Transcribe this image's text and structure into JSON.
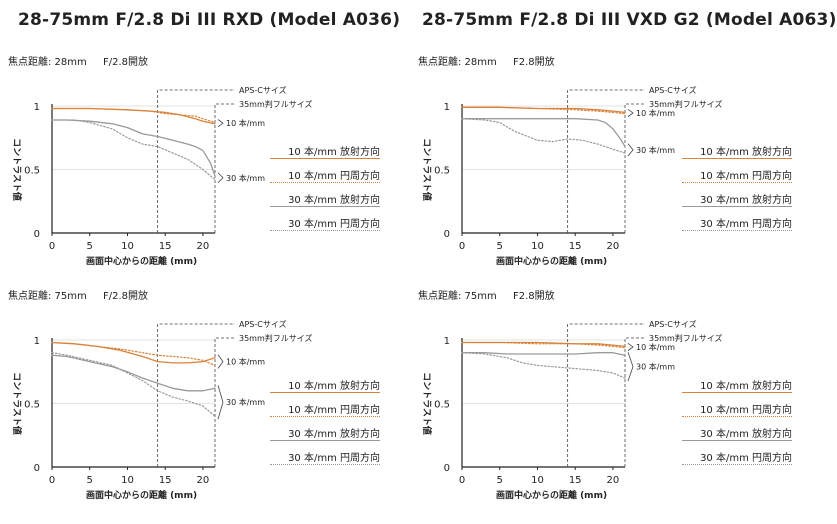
{
  "header": {
    "titles": [
      "28-75mm F/2.8 Di III RXD (Model A036)",
      "28-75mm F/2.8 Di III VXD G2 (Model A063)"
    ]
  },
  "legend": {
    "items": [
      {
        "label": "10 本/mm 放射方向",
        "color": "#d9823a",
        "style": "solid"
      },
      {
        "label": "10 本/mm 円周方向",
        "color": "#d9823a",
        "style": "dotted"
      },
      {
        "label": "30 本/mm 放射方向",
        "color": "#999999",
        "style": "solid"
      },
      {
        "label": "30 本/mm 円周方向",
        "color": "#999999",
        "style": "dotted"
      }
    ]
  },
  "colors": {
    "orange": "#d9823a",
    "gray": "#9a9a9a",
    "axis": "#222222"
  },
  "chart_data": [
    {
      "type": "line",
      "lens": "28-75mm F/2.8 Di III RXD (Model A036)",
      "focal_label": "焦点距離: 28mm",
      "aperture_label": "F/2.8開放",
      "xlabel": "画面中心からの距離 (mm)",
      "ylabel": "コントラスト値",
      "xlim": [
        0,
        21.6
      ],
      "ylim": [
        0,
        1
      ],
      "xticks": [
        0,
        5,
        10,
        15,
        20
      ],
      "yticks": [
        0,
        0.5,
        1
      ],
      "ytick_labels": [
        "0",
        "0.5",
        "1"
      ],
      "aps_c_x": 14,
      "fullframe_x": 21.6,
      "aps_c_label": "APS-Cサイズ",
      "fullframe_label": "35mm判フルサイズ",
      "annotations": [
        "10 本/mm",
        "30 本/mm"
      ],
      "series": [
        {
          "name": "10 本/mm 放射方向",
          "x": [
            0,
            5,
            10,
            13,
            15,
            17,
            19,
            20,
            21.6
          ],
          "y": [
            0.98,
            0.98,
            0.97,
            0.96,
            0.95,
            0.93,
            0.9,
            0.88,
            0.86
          ]
        },
        {
          "name": "10 本/mm 円周方向",
          "x": [
            0,
            5,
            10,
            13,
            15,
            17,
            19,
            20,
            21.6
          ],
          "y": [
            0.98,
            0.98,
            0.97,
            0.96,
            0.94,
            0.93,
            0.92,
            0.9,
            0.87
          ]
        },
        {
          "name": "30 本/mm 放射方向",
          "x": [
            0,
            2,
            5,
            8,
            10,
            12,
            14,
            16,
            18,
            19,
            20,
            21,
            21.6
          ],
          "y": [
            0.89,
            0.89,
            0.88,
            0.86,
            0.83,
            0.78,
            0.76,
            0.73,
            0.7,
            0.68,
            0.65,
            0.55,
            0.45
          ]
        },
        {
          "name": "30 本/mm 円周方向",
          "x": [
            0,
            3,
            5,
            8,
            10,
            12,
            14,
            16,
            18,
            20,
            21.6
          ],
          "y": [
            0.89,
            0.89,
            0.87,
            0.82,
            0.75,
            0.7,
            0.68,
            0.63,
            0.58,
            0.5,
            0.42
          ]
        }
      ]
    },
    {
      "type": "line",
      "lens": "28-75mm F/2.8 Di III VXD G2 (Model A063)",
      "focal_label": "焦点距離: 28mm",
      "aperture_label": "F2.8開放",
      "xlabel": "画面中心からの距離 (mm)",
      "ylabel": "コントラスト値",
      "xlim": [
        0,
        21.6
      ],
      "ylim": [
        0,
        1
      ],
      "xticks": [
        0,
        5,
        10,
        15,
        20
      ],
      "yticks": [
        0,
        0.5,
        1
      ],
      "ytick_labels": [
        "0",
        "0.5",
        "1"
      ],
      "aps_c_x": 14,
      "fullframe_x": 21.6,
      "aps_c_label": "APS-Cサイズ",
      "fullframe_label": "35mm判フルサイズ",
      "annotations": [
        "10 本/mm",
        "30 本/mm"
      ],
      "series": [
        {
          "name": "10 本/mm 放射方向",
          "x": [
            0,
            5,
            10,
            15,
            18,
            20,
            21.6
          ],
          "y": [
            0.99,
            0.99,
            0.98,
            0.98,
            0.97,
            0.96,
            0.95
          ]
        },
        {
          "name": "10 本/mm 円周方向",
          "x": [
            0,
            5,
            10,
            15,
            18,
            20,
            21.6
          ],
          "y": [
            0.99,
            0.99,
            0.98,
            0.97,
            0.96,
            0.95,
            0.94
          ]
        },
        {
          "name": "30 本/mm 放射方向",
          "x": [
            0,
            5,
            10,
            15,
            18,
            19,
            20,
            21,
            21.6
          ],
          "y": [
            0.9,
            0.9,
            0.9,
            0.9,
            0.89,
            0.87,
            0.82,
            0.74,
            0.68
          ]
        },
        {
          "name": "30 本/mm 円周方向",
          "x": [
            0,
            3,
            5,
            7,
            10,
            12,
            14,
            16,
            18,
            20,
            21.6
          ],
          "y": [
            0.9,
            0.89,
            0.87,
            0.8,
            0.73,
            0.72,
            0.74,
            0.73,
            0.7,
            0.66,
            0.63
          ]
        }
      ]
    },
    {
      "type": "line",
      "lens": "28-75mm F/2.8 Di III RXD (Model A036)",
      "focal_label": "焦点距離: 75mm",
      "aperture_label": "F/2.8開放",
      "xlabel": "画面中心からの距離 (mm)",
      "ylabel": "コントラスト値",
      "xlim": [
        0,
        21.6
      ],
      "ylim": [
        0,
        1
      ],
      "xticks": [
        0,
        5,
        10,
        15,
        20
      ],
      "yticks": [
        0,
        0.5,
        1
      ],
      "ytick_labels": [
        "0",
        "0.5",
        "1"
      ],
      "aps_c_x": 14,
      "fullframe_x": 21.6,
      "aps_c_label": "APS-Cサイズ",
      "fullframe_label": "35mm判フルサイズ",
      "annotations": [
        "10 本/mm",
        "30 本/mm"
      ],
      "series": [
        {
          "name": "10 本/mm 放射方向",
          "x": [
            0,
            3,
            6,
            9,
            12,
            14,
            16,
            18,
            20,
            21.6
          ],
          "y": [
            0.98,
            0.97,
            0.95,
            0.92,
            0.87,
            0.83,
            0.82,
            0.82,
            0.83,
            0.86
          ]
        },
        {
          "name": "10 本/mm 円周方向",
          "x": [
            0,
            3,
            6,
            9,
            12,
            14,
            16,
            18,
            20,
            21.6
          ],
          "y": [
            0.98,
            0.97,
            0.95,
            0.93,
            0.9,
            0.88,
            0.87,
            0.86,
            0.84,
            0.8
          ]
        },
        {
          "name": "30 本/mm 放射方向",
          "x": [
            0,
            2,
            5,
            8,
            10,
            12,
            14,
            16,
            18,
            20,
            21.6
          ],
          "y": [
            0.88,
            0.87,
            0.83,
            0.79,
            0.75,
            0.7,
            0.66,
            0.62,
            0.6,
            0.6,
            0.62
          ]
        },
        {
          "name": "30 本/mm 円周方向",
          "x": [
            0,
            2,
            5,
            8,
            10,
            12,
            14,
            16,
            18,
            20,
            21.6
          ],
          "y": [
            0.9,
            0.88,
            0.84,
            0.8,
            0.74,
            0.68,
            0.6,
            0.55,
            0.52,
            0.48,
            0.4
          ]
        }
      ]
    },
    {
      "type": "line",
      "lens": "28-75mm F/2.8 Di III VXD G2 (Model A063)",
      "focal_label": "焦点距離: 75mm",
      "aperture_label": "F2.8開放",
      "xlabel": "画面中心からの距離 (mm)",
      "ylabel": "コントラスト値",
      "xlim": [
        0,
        21.6
      ],
      "ylim": [
        0,
        1
      ],
      "xticks": [
        0,
        5,
        10,
        15,
        20
      ],
      "yticks": [
        0,
        0.5,
        1
      ],
      "ytick_labels": [
        "0",
        "0.5",
        "1"
      ],
      "aps_c_x": 14,
      "fullframe_x": 21.6,
      "aps_c_label": "APS-Cサイズ",
      "fullframe_label": "35mm判フルサイズ",
      "annotations": [
        "10 本/mm",
        "30 本/mm"
      ],
      "series": [
        {
          "name": "10 本/mm 放射方向",
          "x": [
            0,
            5,
            10,
            15,
            18,
            20,
            21.6
          ],
          "y": [
            0.98,
            0.98,
            0.98,
            0.97,
            0.97,
            0.96,
            0.95
          ]
        },
        {
          "name": "10 本/mm 円周方向",
          "x": [
            0,
            5,
            10,
            15,
            18,
            20,
            21.6
          ],
          "y": [
            0.98,
            0.98,
            0.97,
            0.97,
            0.96,
            0.95,
            0.94
          ]
        },
        {
          "name": "30 本/mm 放射方向",
          "x": [
            0,
            3,
            6,
            9,
            12,
            15,
            18,
            20,
            21.6
          ],
          "y": [
            0.9,
            0.9,
            0.89,
            0.89,
            0.89,
            0.89,
            0.9,
            0.9,
            0.88
          ]
        },
        {
          "name": "30 本/mm 円周方向",
          "x": [
            0,
            3,
            6,
            8,
            10,
            12,
            14,
            16,
            18,
            20,
            21.6
          ],
          "y": [
            0.9,
            0.89,
            0.86,
            0.82,
            0.8,
            0.79,
            0.78,
            0.77,
            0.76,
            0.74,
            0.7
          ]
        }
      ]
    }
  ]
}
